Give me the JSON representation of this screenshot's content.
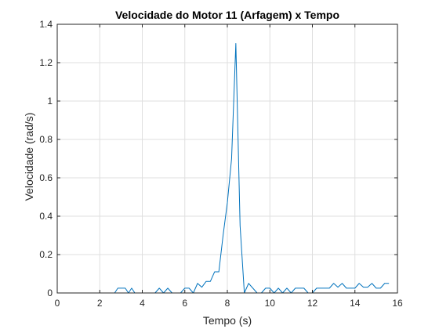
{
  "chart_data": {
    "type": "line",
    "title": "Velocidade do Motor 11 (Arfagem) x Tempo",
    "xlabel": "Tempo (s)",
    "ylabel": "Velocidade (rad/s)",
    "xlim": [
      0,
      16
    ],
    "ylim": [
      0,
      1.4
    ],
    "xticks": [
      0,
      2,
      4,
      6,
      8,
      10,
      12,
      14,
      16
    ],
    "yticks": [
      0,
      0.2,
      0.4,
      0.6,
      0.8,
      1,
      1.2,
      1.4
    ],
    "xtick_labels": [
      "0",
      "2",
      "4",
      "6",
      "8",
      "10",
      "12",
      "14",
      "16"
    ],
    "ytick_labels": [
      "0",
      "0.2",
      "0.4",
      "0.6",
      "0.8",
      "1",
      "1.2",
      "1.4"
    ],
    "grid": true,
    "series": [
      {
        "color": "#0072bd",
        "x": [
          0,
          0.4,
          0.8,
          1.2,
          1.6,
          2.0,
          2.4,
          2.7,
          2.85,
          3.0,
          3.2,
          3.35,
          3.5,
          3.65,
          3.8,
          4.0,
          4.4,
          4.6,
          4.8,
          5.0,
          5.2,
          5.4,
          5.6,
          5.8,
          6.0,
          6.2,
          6.4,
          6.6,
          6.8,
          7.0,
          7.2,
          7.4,
          7.6,
          7.8,
          8.0,
          8.2,
          8.4,
          8.6,
          8.8,
          9.0,
          9.2,
          9.4,
          9.6,
          9.8,
          10.0,
          10.2,
          10.4,
          10.6,
          10.8,
          11.0,
          11.2,
          11.4,
          11.6,
          11.8,
          12.0,
          12.2,
          12.4,
          12.6,
          12.8,
          13.0,
          13.2,
          13.4,
          13.6,
          13.8,
          14.0,
          14.2,
          14.4,
          14.6,
          14.8,
          15.0,
          15.2,
          15.4,
          15.6
        ],
        "y": [
          0,
          0,
          0,
          0,
          0,
          0,
          0,
          0,
          0.025,
          0.025,
          0.025,
          0,
          0.025,
          0,
          0,
          0,
          0,
          0,
          0.025,
          0,
          0.025,
          0,
          0,
          0,
          0.025,
          0.025,
          0,
          0.05,
          0.03,
          0.06,
          0.06,
          0.11,
          0.11,
          0.3,
          0.47,
          0.7,
          1.3,
          0.35,
          0,
          0.05,
          0.025,
          0,
          0,
          0.025,
          0.025,
          0,
          0.025,
          0,
          0.025,
          0,
          0.025,
          0.025,
          0.025,
          0,
          0,
          0.025,
          0.025,
          0.025,
          0.025,
          0.05,
          0.03,
          0.05,
          0.025,
          0.025,
          0.025,
          0.05,
          0.03,
          0.03,
          0.05,
          0.025,
          0.025,
          0.05,
          0.05
        ]
      }
    ]
  }
}
